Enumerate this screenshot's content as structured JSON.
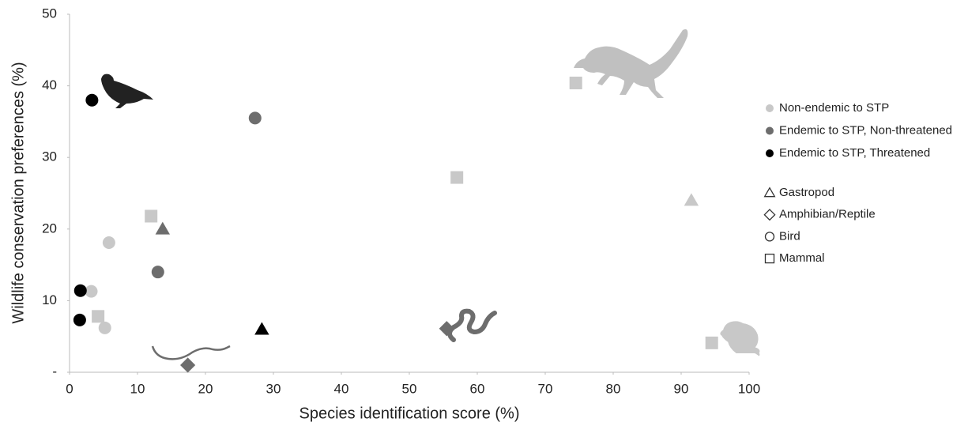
{
  "chart_data": {
    "type": "scatter",
    "x_label": "Species identification score (%)",
    "y_label": "Wildlife conservation preferences (%)",
    "xlim": [
      0,
      100
    ],
    "xticks": [
      0,
      10,
      20,
      30,
      40,
      50,
      60,
      70,
      80,
      90,
      100
    ],
    "ylim": [
      0,
      50
    ],
    "yticks": [
      {
        "value": 0,
        "label": "-"
      },
      10,
      20,
      30,
      40,
      50
    ],
    "grid": false,
    "series": [
      {
        "name": "Non-endemic to STP",
        "color": "#c8c8c8",
        "x": [
          74.5,
          57,
          91.5,
          94.5,
          12,
          5.8,
          3.2,
          4.2,
          5.2
        ],
        "values": [
          40.4,
          27.2,
          24,
          4.1,
          21.8,
          18.1,
          11.3,
          7.8,
          6.2
        ],
        "markers": [
          "square",
          "square",
          "triangle",
          "square",
          "square",
          "circle",
          "circle",
          "square",
          "circle"
        ]
      },
      {
        "name": "Endemic to STP, Non-threatened",
        "color": "#6d6d6d",
        "x": [
          27.3,
          13.7,
          13,
          17.4,
          55.5
        ],
        "values": [
          35.5,
          20,
          14,
          1,
          6.1
        ],
        "markers": [
          "circle",
          "triangle",
          "circle",
          "diamond",
          "diamond"
        ]
      },
      {
        "name": "Endemic to STP, Threatened",
        "color": "#000000",
        "x": [
          3.3,
          1.6,
          1.5,
          28.3
        ],
        "values": [
          38,
          11.4,
          7.3,
          6
        ],
        "markers": [
          "circle",
          "circle",
          "circle",
          "triangle"
        ]
      }
    ],
    "shape_legend": [
      {
        "name": "Gastropod",
        "marker": "triangle"
      },
      {
        "name": "Amphibian/Reptile",
        "marker": "diamond"
      },
      {
        "name": "Bird",
        "marker": "circle"
      },
      {
        "name": "Mammal",
        "marker": "square"
      }
    ]
  }
}
